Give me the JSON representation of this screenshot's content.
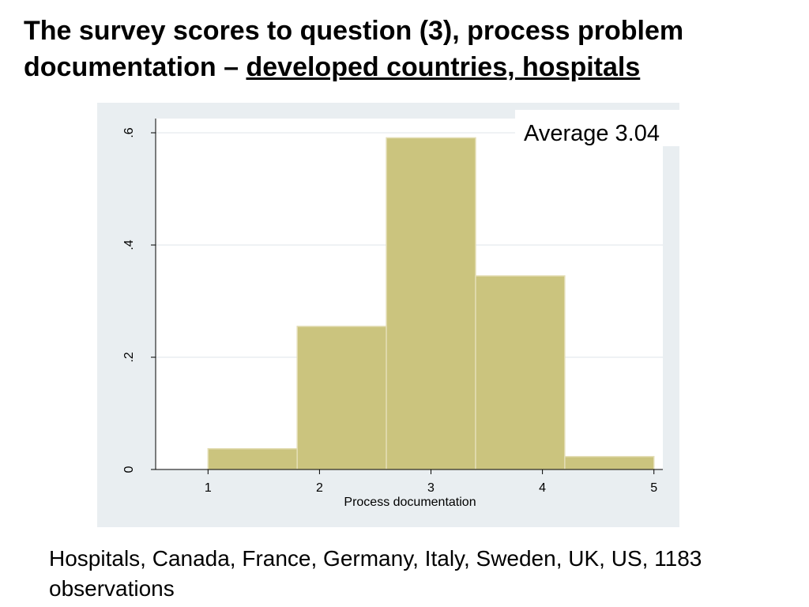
{
  "slide": {
    "title_plain": "The survey scores to question (3), process problem documentation –",
    "title_emphasis": "developed countries, hospitals",
    "footnote": "Hospitals, Canada, France, Germany, Italy, Sweden, UK, US, 1183 observations"
  },
  "chart_data": {
    "type": "bar",
    "title": "",
    "annotation": "Average 3.04",
    "xlabel": "Process documentation",
    "ylabel": "",
    "x_ticks": [
      1,
      2,
      3,
      4,
      5
    ],
    "y_ticks": [
      0,
      0.2,
      0.4,
      0.6
    ],
    "y_tick_labels": [
      "0",
      ".2",
      ".4",
      ".6"
    ],
    "xlim": [
      0.53,
      5.08
    ],
    "ylim": [
      0,
      0.6
    ],
    "bins": [
      {
        "start": 1.0,
        "end": 1.8,
        "value": 0.037
      },
      {
        "start": 1.8,
        "end": 2.6,
        "value": 0.255
      },
      {
        "start": 2.6,
        "end": 3.4,
        "value": 0.591
      },
      {
        "start": 3.4,
        "end": 4.2,
        "value": 0.345
      },
      {
        "start": 4.2,
        "end": 5.0,
        "value": 0.023
      }
    ],
    "grid": true,
    "colors": {
      "bar_fill": "#cbc47e",
      "bar_edge": "#e3ddb4",
      "outer_background": "#e9eef1",
      "plot_background": "#ffffff",
      "gridline": "#eaeef0"
    }
  }
}
